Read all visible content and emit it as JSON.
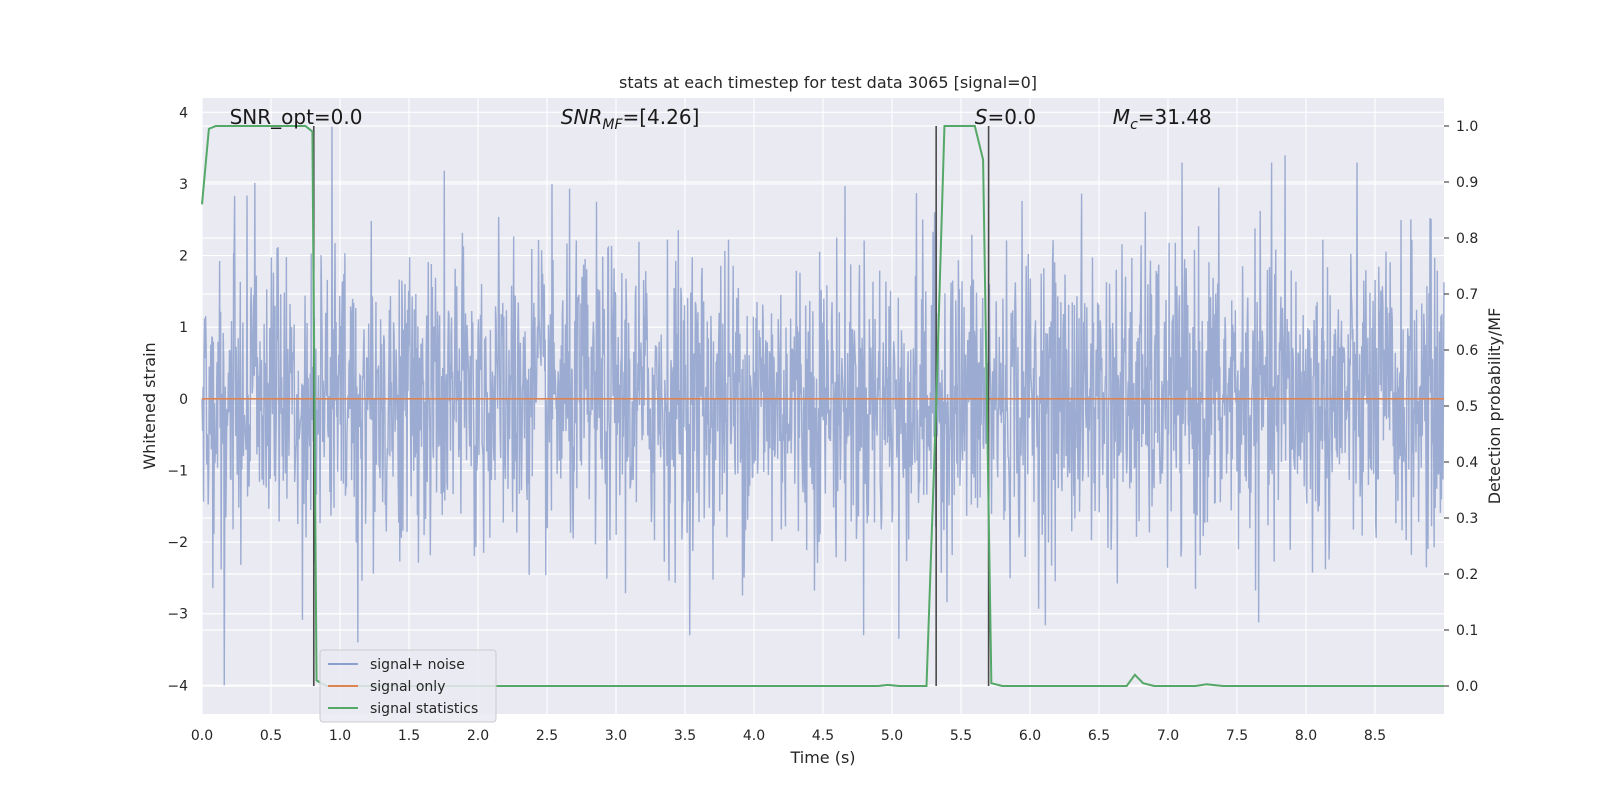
{
  "chart_data": {
    "type": "line",
    "title": "stats at each timestep for test data 3065 [signal=0]",
    "xlabel": "Time (s)",
    "ylabel": "Whitened strain",
    "ylabel_right": "Detection probability/MF",
    "xlim": [
      0.0,
      9.0
    ],
    "ylim": [
      -4.4,
      4.2
    ],
    "ylim_right": [
      -0.05,
      1.05
    ],
    "x_ticks": [
      "0.0",
      "0.5",
      "1.0",
      "1.5",
      "2.0",
      "2.5",
      "3.0",
      "3.5",
      "4.0",
      "4.5",
      "5.0",
      "5.5",
      "6.0",
      "6.5",
      "7.0",
      "7.5",
      "8.0",
      "8.5"
    ],
    "y_ticks": [
      "4",
      "3",
      "2",
      "1",
      "0",
      "−1",
      "−2",
      "−3",
      "−4"
    ],
    "y_ticks_right": [
      "1.0",
      "0.9",
      "0.8",
      "0.7",
      "0.6",
      "0.5",
      "0.4",
      "0.3",
      "0.2",
      "0.1",
      "0.0"
    ],
    "grid": true,
    "legend_placement": "lower-left",
    "annotations": [
      {
        "text": "SNR_opt=0.0",
        "x": 0.2
      },
      {
        "text": "SNR_MF=[4.26]",
        "x": 2.6
      },
      {
        "text": "S=0.0",
        "x": 5.6
      },
      {
        "text": "M_c=31.48",
        "x": 6.6
      }
    ],
    "vertical_lines": [
      0.81,
      5.32,
      5.7
    ],
    "series": [
      {
        "name": "signal+ noise",
        "color": "#8da0cb",
        "description": "noisy whitened strain, ~ Gaussian noise, range about -4 to 3.8",
        "noise_std": 1.05,
        "peaks": [
          {
            "x": 0.94,
            "y": 3.8
          },
          {
            "x": 0.16,
            "y": -4.0
          },
          {
            "x": 1.13,
            "y": -3.4
          },
          {
            "x": 5.05,
            "y": -3.35
          },
          {
            "x": 7.85,
            "y": 3.4
          }
        ]
      },
      {
        "name": "signal only",
        "color": "#dd8452",
        "values_constant": 0.0
      },
      {
        "name": "signal statistics",
        "color": "#55a868",
        "axis": "right",
        "x": [
          0.0,
          0.05,
          0.1,
          0.2,
          0.5,
          0.75,
          0.8,
          0.83,
          0.9,
          1.0,
          2.0,
          3.0,
          4.0,
          4.9,
          4.97,
          5.05,
          5.25,
          5.32,
          5.38,
          5.5,
          5.6,
          5.66,
          5.72,
          5.8,
          6.0,
          6.5,
          6.7,
          6.76,
          6.82,
          6.9,
          7.0,
          7.2,
          7.28,
          7.4,
          8.0,
          9.0
        ],
        "y": [
          0.86,
          0.995,
          1.0,
          1.0,
          1.0,
          1.0,
          0.99,
          0.01,
          0.0,
          0.0,
          0.0,
          0.0,
          0.0,
          0.0,
          0.002,
          0.0,
          0.0,
          0.5,
          1.0,
          1.0,
          1.0,
          0.94,
          0.005,
          0.0,
          0.0,
          0.0,
          0.0,
          0.02,
          0.005,
          0.0,
          0.0,
          0.0,
          0.003,
          0.0,
          0.0,
          0.0
        ]
      }
    ]
  }
}
